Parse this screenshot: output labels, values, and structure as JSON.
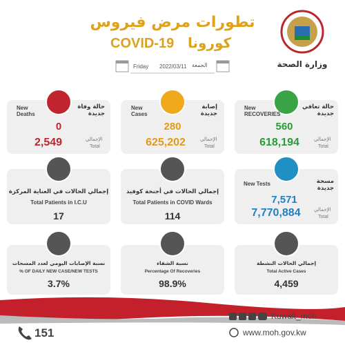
{
  "header": {
    "title": "تطورات مرض فيروس",
    "subtitle_ar": "كورونا",
    "subtitle_en": "COVID-19",
    "ministry": "وزارة الصحة",
    "day_ar": "الجمعة",
    "date": "2022/03/11",
    "day_en": "Friday"
  },
  "cards": [
    {
      "label_ar": "حالة وفاة جديدة",
      "label_en": "New Deaths",
      "value": "0",
      "total_label_ar": "الإجمالي",
      "total_label_en": "Total",
      "total": "2,549"
    },
    {
      "label_ar": "إصابة جديدة",
      "label_en": "New Cases",
      "value": "280",
      "total_label_ar": "الإجمالي",
      "total_label_en": "Total",
      "total": "625,202"
    },
    {
      "label_ar": "حالة تعافي جديدة",
      "label_en": "New RECOVERIES",
      "value": "560",
      "total_label_ar": "الإجمالي",
      "total_label_en": "Total",
      "total": "618,194"
    },
    {
      "label_ar": "إجمالي الحالات في العناية المركزة",
      "label_en": "Total Patients in I.C.U",
      "value": "17"
    },
    {
      "label_ar": "إجمالي الحالات في أجنحة كوفيد",
      "label_en": "Total Patients in COVID Wards",
      "value": "114"
    },
    {
      "label_ar": "مسحة جديدة",
      "label_en": "New Tests",
      "value": "7,571",
      "total_label_ar": "الإجمالي",
      "total_label_en": "Total",
      "total": "7,770,884"
    },
    {
      "label_ar": "نسبة الإصابات اليومي لعدد المسحات",
      "label_en": "% OF DAILY NEW CASE/NEW TESTS",
      "value": "3.7%"
    },
    {
      "label_ar": "نسبة الشفاء",
      "label_en": "Percentage Of Recoveries",
      "value": "98.9%"
    },
    {
      "label_ar": "إجمالي الحالات النشطة",
      "label_en": "Total Active Cases",
      "value": "4,459"
    }
  ],
  "footer": {
    "handle": "Kuwait_moh",
    "website": "www.moh.gov.kw",
    "hotline": "151"
  }
}
